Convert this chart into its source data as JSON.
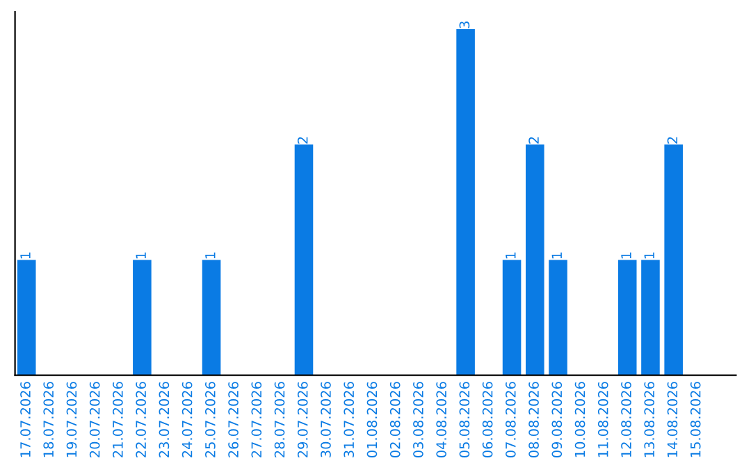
{
  "chart_data": {
    "type": "bar",
    "categories": [
      "17.07.2026",
      "18.07.2026",
      "19.07.2026",
      "20.07.2026",
      "21.07.2026",
      "22.07.2026",
      "23.07.2026",
      "24.07.2026",
      "25.07.2026",
      "26.07.2026",
      "27.07.2026",
      "28.07.2026",
      "29.07.2026",
      "30.07.2026",
      "31.07.2026",
      "01.08.2026",
      "02.08.2026",
      "03.08.2026",
      "04.08.2026",
      "05.08.2026",
      "06.08.2026",
      "07.08.2026",
      "08.08.2026",
      "09.08.2026",
      "10.08.2026",
      "11.08.2026",
      "12.08.2026",
      "13.08.2026",
      "14.08.2026",
      "15.08.2026"
    ],
    "values": [
      1,
      0,
      0,
      0,
      0,
      1,
      0,
      0,
      1,
      0,
      0,
      0,
      2,
      0,
      0,
      0,
      0,
      0,
      0,
      3,
      0,
      1,
      2,
      1,
      0,
      0,
      1,
      1,
      2,
      0
    ],
    "value_labels": [
      "1",
      null,
      null,
      null,
      null,
      "1",
      null,
      null,
      "1",
      null,
      null,
      null,
      "2",
      null,
      null,
      null,
      null,
      null,
      null,
      "3",
      null,
      "1",
      "2",
      "1",
      null,
      null,
      "1",
      "1",
      "2",
      null
    ],
    "color": "#0a7be4",
    "grid": false,
    "legend": false,
    "tick_labels": "x"
  }
}
